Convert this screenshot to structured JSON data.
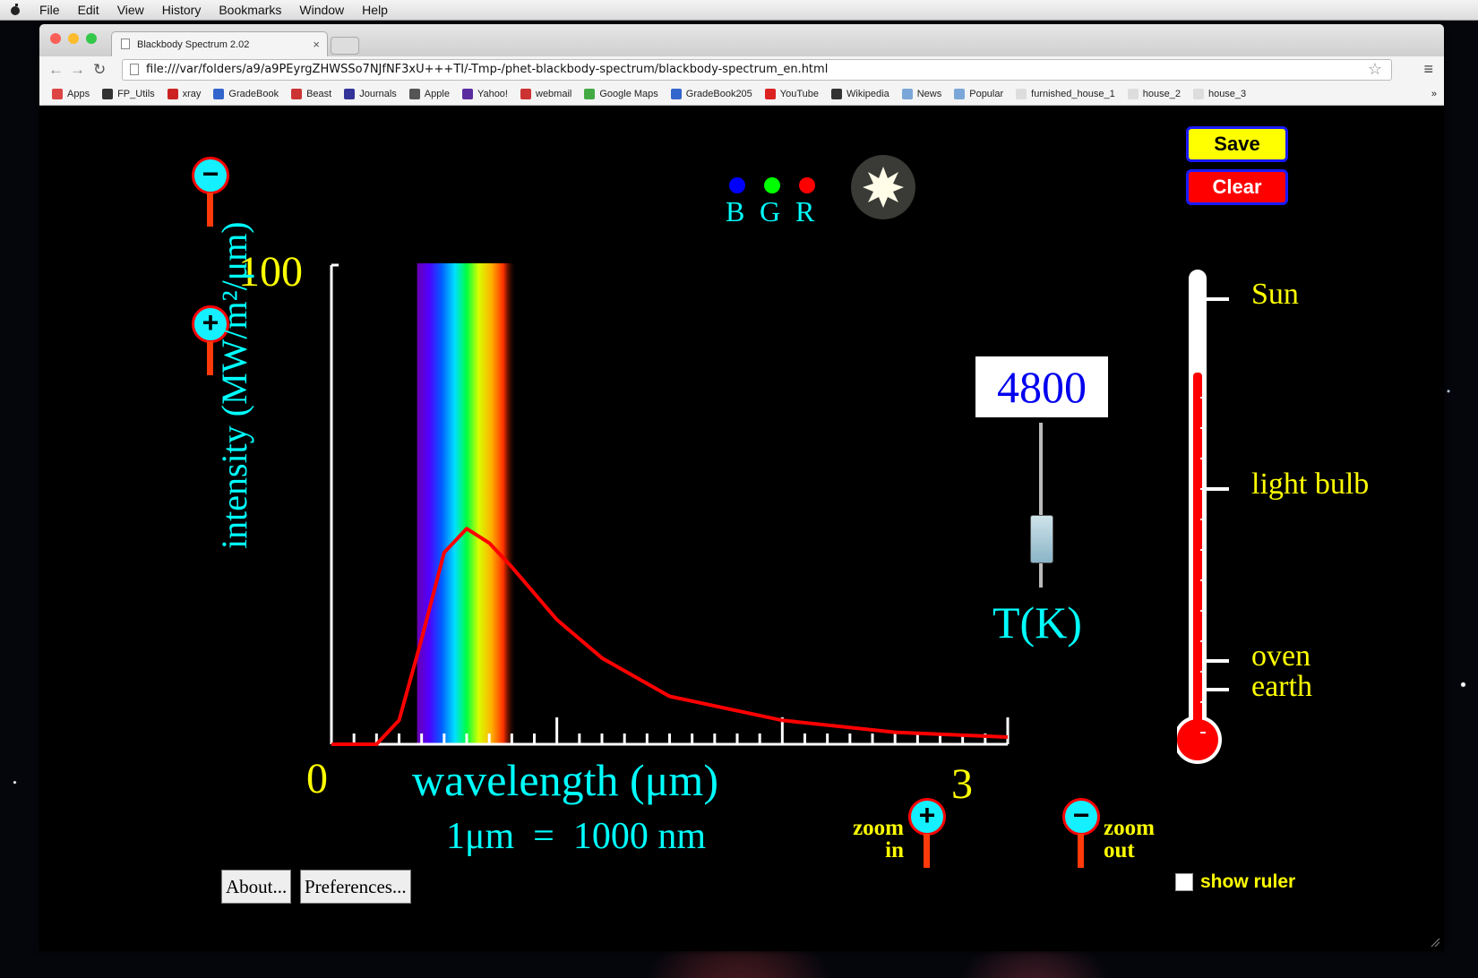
{
  "menubar": {
    "items": [
      "File",
      "Edit",
      "View",
      "History",
      "Bookmarks",
      "Window",
      "Help"
    ]
  },
  "browser": {
    "tab_title": "Blackbody Spectrum 2.02",
    "tab_close": "×",
    "url": "file:///var/folders/a9/a9PEyrgZHWSSo7NJfNF3xU+++TI/-Tmp-/phet-blackbody-spectrum/blackbody-spectrum_en.html",
    "bookmarks": [
      "Apps",
      "FP_Utils",
      "xray",
      "GradeBook",
      "Beast",
      "Journals",
      "Apple",
      "Yahoo!",
      "webmail",
      "Google Maps",
      "GradeBook205",
      "YouTube",
      "Wikipedia",
      "News",
      "Popular",
      "furnished_house_1",
      "house_2",
      "house_3"
    ],
    "more": "»"
  },
  "sim": {
    "save_label": "Save",
    "clear_label": "Clear",
    "bgr": [
      "B",
      "G",
      "R"
    ],
    "bgr_colors": [
      "#0000ff",
      "#00ff00",
      "#ff0000"
    ],
    "y_max_label": "100",
    "y_axis_label": "intensity (MW/m²/μm)",
    "x_min_label": "0",
    "x_max_label": "3",
    "x_axis_label": "wavelength (μm)",
    "unit_note": "1μm  =  1000 nm",
    "temperature_value": "4800",
    "temperature_label": "T(K)",
    "thermometer_marks": [
      "Sun",
      "light bulb",
      "oven",
      "earth"
    ],
    "zoom_in_label": [
      "zoom",
      "in"
    ],
    "zoom_out_label": [
      "zoom",
      "out"
    ],
    "show_ruler_label": "show ruler",
    "about_label": "About...",
    "preferences_label": "Preferences...",
    "slider_level": 0.3,
    "thermometer_level": 0.8,
    "curve_color": "#ff0000",
    "text_colors": {
      "yellow": "#ffff00",
      "cyan": "#00ffff"
    }
  },
  "chart_data": {
    "type": "line",
    "xlabel": "wavelength (μm)",
    "ylabel": "intensity (MW/m²/μm)",
    "xlim": [
      0,
      3
    ],
    "ylim": [
      0,
      100
    ],
    "temperature_K": 4800,
    "x": [
      0.0,
      0.2,
      0.3,
      0.4,
      0.5,
      0.6,
      0.7,
      0.8,
      1.0,
      1.2,
      1.5,
      2.0,
      2.5,
      3.0
    ],
    "y": [
      0,
      0,
      5,
      22,
      40,
      45,
      42,
      37,
      26,
      18,
      10,
      5,
      2.5,
      1.5
    ]
  }
}
